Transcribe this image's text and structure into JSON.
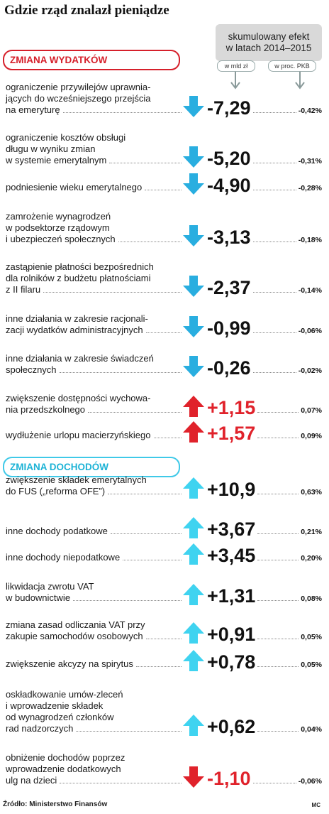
{
  "title": "Gdzie rząd znalazł pieniądze",
  "header": {
    "line1": "skumulowany efekt",
    "line2": "w latach 2014–2015",
    "col1": "w mld zł",
    "col2": "w proc. PKB"
  },
  "colors": {
    "red": "#e0222b",
    "cyan": "#3fc9e8",
    "blue_arrow": "#29aee0",
    "cyan_arrow": "#3fd3f0",
    "red_arrow": "#e0222b"
  },
  "chart_data": {
    "type": "table",
    "title": "Gdzie rząd znalazł pieniądze",
    "columns": [
      "w mld zł",
      "w proc. PKB"
    ],
    "sections": [
      {
        "name": "ZMIANA WYDATKÓW",
        "rows": [
          {
            "label": [
              "ograniczenie przywilejów uprawnia-",
              "jących do wcześniejszego przejścia",
              "na emeryturę"
            ],
            "value": "-7,29",
            "pct": "-0,42%",
            "direction": "down"
          },
          {
            "label": [
              "ograniczenie kosztów obsługi",
              "długu w wyniku zmian",
              "w systemie emerytalnym"
            ],
            "value": "-5,20",
            "pct": "-0,31%",
            "direction": "down"
          },
          {
            "label": [
              "podniesienie wieku emerytalnego"
            ],
            "value": "-4,90",
            "pct": "-0,28%",
            "direction": "down"
          },
          {
            "label": [
              "zamrożenie wynagrodzeń",
              "w podsektorze rządowym",
              "i ubezpieczeń społecznych"
            ],
            "value": "-3,13",
            "pct": "-0,18%",
            "direction": "down"
          },
          {
            "label": [
              "zastąpienie płatności bezpośrednich",
              "dla rolników z budżetu płatnościami",
              "z II filaru"
            ],
            "value": "-2,37",
            "pct": "-0,14%",
            "direction": "down"
          },
          {
            "label": [
              "inne działania w zakresie racjonali-",
              "zacji wydatków administracyjnych"
            ],
            "value": "-0,99",
            "pct": "-0,06%",
            "direction": "down"
          },
          {
            "label": [
              "inne działania w zakresie świadczeń",
              "społecznych"
            ],
            "value": "-0,26",
            "pct": "-0,02%",
            "direction": "down"
          },
          {
            "label": [
              "zwiększenie dostępności wychowa-",
              "nia przedszkolnego"
            ],
            "value": "+1,15",
            "pct": "0,07%",
            "direction": "up-red"
          },
          {
            "label": [
              "wydłużenie urlopu macierzyńskiego"
            ],
            "value": "+1,57",
            "pct": "0,09%",
            "direction": "up-red"
          }
        ]
      },
      {
        "name": "ZMIANA DOCHODÓW",
        "rows": [
          {
            "label": [
              "zwiększenie składek emerytalnych",
              "do FUS („reforma OFE”)"
            ],
            "value": "+10,9",
            "pct": "0,63%",
            "direction": "up"
          },
          {
            "label": [
              "inne dochody podatkowe"
            ],
            "value": "+3,67",
            "pct": "0,21%",
            "direction": "up"
          },
          {
            "label": [
              "inne dochody niepodatkowe"
            ],
            "value": "+3,45",
            "pct": "0,20%",
            "direction": "up"
          },
          {
            "label": [
              "likwidacja zwrotu VAT",
              "w budownictwie"
            ],
            "value": "+1,31",
            "pct": "0,08%",
            "direction": "up"
          },
          {
            "label": [
              "zmiana zasad odliczania VAT przy",
              "zakupie samochodów osobowych"
            ],
            "value": "+0,91",
            "pct": "0,05%",
            "direction": "up"
          },
          {
            "label": [
              "zwiększenie akcyzy na spirytus"
            ],
            "value": "+0,78",
            "pct": "0,05%",
            "direction": "up"
          },
          {
            "label": [
              "oskładkowanie umów-zleceń",
              "i wprowadzenie składek",
              "od wynagrodzeń członków",
              "rad nadzorczych"
            ],
            "value": "+0,62",
            "pct": "0,04%",
            "direction": "up"
          },
          {
            "label": [
              "obniżenie dochodów poprzez",
              "wprowadzenie dodatkowych",
              "ulg na dzieci"
            ],
            "value": "-1,10",
            "pct": "-0,06%",
            "direction": "down-red"
          }
        ]
      }
    ]
  },
  "source": "Źródło: Ministerstwo Finansów",
  "credit": "MC"
}
